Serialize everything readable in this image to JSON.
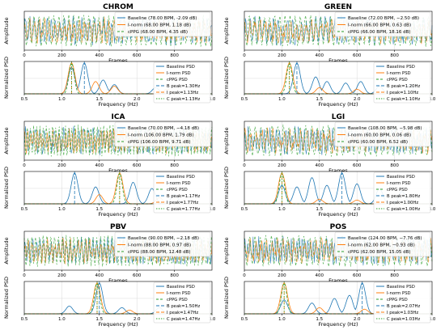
{
  "colors": {
    "baseline": "#1f77b4",
    "inorm": "#ff7f0e",
    "cppg": "#2ca02c",
    "axis": "#000000",
    "grid": "#d9d9d9"
  },
  "chart_data": [
    {
      "method": "CHROM",
      "time": {
        "type": "line",
        "title": "CHROM",
        "xlabel": "Frames",
        "ylabel": "Amplitude",
        "xlim": [
          0,
          1000
        ],
        "xticks": [
          0,
          200,
          400,
          600,
          800
        ],
        "legend_position": "upper-right",
        "grid": true,
        "series": [
          {
            "name": "Baseline (78.00 BPM, -2.09 dB)"
          },
          {
            "name": "I-norm (68.00 BPM, 1.18 dB)"
          },
          {
            "name": "cPPG (68.00 BPM, 4.35 dB)"
          }
        ]
      },
      "psd": {
        "type": "line",
        "xlabel": "Frequency (Hz)",
        "ylabel": "Normalized PSD",
        "xlim": [
          0.5,
          3.0
        ],
        "xticks": [
          0.5,
          1.0,
          1.5,
          2.0,
          2.5,
          3.0
        ],
        "ylim": [
          0,
          1.05
        ],
        "legend_position": "upper-right",
        "grid": true,
        "series": [
          {
            "name": "Baseline PSD",
            "peaks": [
              [
                1.3,
                1.0
              ],
              [
                1.13,
                0.85
              ],
              [
                1.55,
                0.45
              ],
              [
                1.7,
                0.3
              ],
              [
                2.25,
                0.2
              ]
            ]
          },
          {
            "name": "I-norm PSD",
            "peaks": [
              [
                1.13,
                1.0
              ],
              [
                1.45,
                0.4
              ],
              [
                1.7,
                0.25
              ],
              [
                2.4,
                0.15
              ]
            ]
          },
          {
            "name": "cPPG PSD",
            "peaks": [
              [
                1.13,
                1.0
              ]
            ]
          }
        ],
        "peak_lines": [
          {
            "name": "B peak=1.30Hz",
            "x": 1.3
          },
          {
            "name": "I peak=1.13Hz",
            "x": 1.13
          },
          {
            "name": "C peak=1.13Hz",
            "x": 1.13
          }
        ]
      }
    },
    {
      "method": "GREEN",
      "time": {
        "type": "line",
        "title": "GREEN",
        "xlabel": "Frames",
        "ylabel": "Amplitude",
        "xlim": [
          0,
          1000
        ],
        "xticks": [
          0,
          200,
          400,
          600,
          800
        ],
        "legend_position": "upper-right",
        "grid": true,
        "series": [
          {
            "name": "Baseline (72.00 BPM, −2.50 dB)"
          },
          {
            "name": "I-norm (66.00 BPM, 0.63 dB)"
          },
          {
            "name": "cPPG (66.00 BPM, 18.16 dB)"
          }
        ]
      },
      "psd": {
        "type": "line",
        "xlabel": "Frequency (Hz)",
        "ylabel": "Normalized PSD",
        "xlim": [
          0.5,
          3.0
        ],
        "xticks": [
          0.5,
          1.0,
          1.5,
          2.0,
          2.5,
          3.0
        ],
        "ylim": [
          0,
          1.05
        ],
        "legend_position": "upper-right",
        "grid": true,
        "series": [
          {
            "name": "Baseline PSD",
            "peaks": [
              [
                1.2,
                1.0
              ],
              [
                1.45,
                0.55
              ],
              [
                1.6,
                0.4
              ],
              [
                1.85,
                0.35
              ],
              [
                2.05,
                0.4
              ],
              [
                2.3,
                0.25
              ],
              [
                2.7,
                0.3
              ]
            ]
          },
          {
            "name": "I-norm PSD",
            "peaks": [
              [
                1.1,
                1.0
              ],
              [
                1.5,
                0.2
              ],
              [
                2.0,
                0.15
              ]
            ]
          },
          {
            "name": "cPPG PSD",
            "peaks": [
              [
                1.1,
                1.0
              ]
            ]
          }
        ],
        "peak_lines": [
          {
            "name": "B peak=1.20Hz",
            "x": 1.2
          },
          {
            "name": "I peak=1.10Hz",
            "x": 1.1
          },
          {
            "name": "C peak=1.10Hz",
            "x": 1.1
          }
        ]
      }
    },
    {
      "method": "ICA",
      "time": {
        "type": "line",
        "title": "ICA",
        "xlabel": "Frames",
        "ylabel": "Amplitude",
        "xlim": [
          0,
          1000
        ],
        "xticks": [
          0,
          200,
          400,
          600,
          800
        ],
        "legend_position": "upper-right",
        "grid": true,
        "series": [
          {
            "name": "Baseline (70.00 BPM, −4.18 dB)"
          },
          {
            "name": "I-norm (106.00 BPM, 1.79 dB)"
          },
          {
            "name": "cPPG (106.00 BPM, 9.71 dB)"
          }
        ]
      },
      "psd": {
        "type": "line",
        "xlabel": "Frequency (Hz)",
        "ylabel": "Normalized PSD",
        "xlim": [
          0.5,
          3.0
        ],
        "xticks": [
          0.5,
          1.0,
          1.5,
          2.0,
          2.5,
          3.0
        ],
        "ylim": [
          0,
          1.05
        ],
        "legend_position": "upper-right",
        "grid": true,
        "series": [
          {
            "name": "Baseline PSD",
            "peaks": [
              [
                1.17,
                1.0
              ],
              [
                1.45,
                0.55
              ],
              [
                1.95,
                0.7
              ],
              [
                2.2,
                0.5
              ],
              [
                2.5,
                0.3
              ]
            ]
          },
          {
            "name": "I-norm PSD",
            "peaks": [
              [
                1.77,
                1.0
              ],
              [
                1.5,
                0.3
              ],
              [
                2.3,
                0.2
              ]
            ]
          },
          {
            "name": "cPPG PSD",
            "peaks": [
              [
                1.77,
                1.0
              ]
            ]
          }
        ],
        "peak_lines": [
          {
            "name": "B peak=1.17Hz",
            "x": 1.17
          },
          {
            "name": "I peak=1.77Hz",
            "x": 1.77
          },
          {
            "name": "C peak=1.77Hz",
            "x": 1.77
          }
        ]
      }
    },
    {
      "method": "LGI",
      "time": {
        "type": "line",
        "title": "LGI",
        "xlabel": "Frames",
        "ylabel": "Amplitude",
        "xlim": [
          0,
          1000
        ],
        "xticks": [
          0,
          200,
          400,
          600,
          800
        ],
        "legend_position": "upper-right",
        "grid": true,
        "series": [
          {
            "name": "Baseline (108.00 BPM, −5.98 dB)"
          },
          {
            "name": "I-norm (60.00 BPM, 0.06 dB)"
          },
          {
            "name": "cPPG (60.00 BPM, 6.52 dB)"
          }
        ]
      },
      "psd": {
        "type": "line",
        "xlabel": "Frequency (Hz)",
        "ylabel": "Normalized PSD",
        "xlim": [
          0.5,
          3.0
        ],
        "xticks": [
          0.5,
          1.0,
          1.5,
          2.0,
          2.5,
          3.0
        ],
        "ylim": [
          0,
          1.05
        ],
        "legend_position": "upper-right",
        "grid": true,
        "series": [
          {
            "name": "Baseline PSD",
            "peaks": [
              [
                1.8,
                1.0
              ],
              [
                1.0,
                0.6
              ],
              [
                1.2,
                0.55
              ],
              [
                1.4,
                0.85
              ],
              [
                1.6,
                0.6
              ],
              [
                2.0,
                0.65
              ],
              [
                2.3,
                0.5
              ],
              [
                2.6,
                0.4
              ]
            ]
          },
          {
            "name": "I-norm PSD",
            "peaks": [
              [
                1.0,
                1.0
              ],
              [
                1.5,
                0.15
              ],
              [
                2.0,
                0.12
              ]
            ]
          },
          {
            "name": "cPPG PSD",
            "peaks": [
              [
                1.0,
                1.0
              ]
            ]
          }
        ],
        "peak_lines": [
          {
            "name": "B peak=1.80Hz",
            "x": 1.8
          },
          {
            "name": "I peak=1.00Hz",
            "x": 1.0
          },
          {
            "name": "C peak=1.00Hz",
            "x": 1.0
          }
        ]
      }
    },
    {
      "method": "PBV",
      "time": {
        "type": "line",
        "title": "PBV",
        "xlabel": "Frames",
        "ylabel": "Amplitude",
        "xlim": [
          0,
          1000
        ],
        "xticks": [
          0,
          200,
          400,
          600,
          800
        ],
        "legend_position": "upper-right",
        "grid": true,
        "series": [
          {
            "name": "Baseline (90.00 BPM, −2.18 dB)"
          },
          {
            "name": "I-norm (88.00 BPM, 0.97 dB)"
          },
          {
            "name": "cPPG (88.00 BPM, 12.48 dB)"
          }
        ]
      },
      "psd": {
        "type": "line",
        "xlabel": "Frequency (Hz)",
        "ylabel": "Normalized PSD",
        "xlim": [
          0.5,
          3.0
        ],
        "xticks": [
          0.5,
          1.0,
          1.5,
          2.0,
          2.5,
          3.0
        ],
        "ylim": [
          0,
          1.05
        ],
        "legend_position": "upper-right",
        "grid": true,
        "series": [
          {
            "name": "Baseline PSD",
            "peaks": [
              [
                1.5,
                1.0
              ],
              [
                1.1,
                0.25
              ],
              [
                1.8,
                0.2
              ],
              [
                2.3,
                0.2
              ],
              [
                2.7,
                0.15
              ]
            ]
          },
          {
            "name": "I-norm PSD",
            "peaks": [
              [
                1.47,
                1.0
              ],
              [
                1.9,
                0.12
              ]
            ]
          },
          {
            "name": "cPPG PSD",
            "peaks": [
              [
                1.47,
                1.0
              ]
            ]
          }
        ],
        "peak_lines": [
          {
            "name": "B peak=1.50Hz",
            "x": 1.5
          },
          {
            "name": "I peak=1.47Hz",
            "x": 1.47
          },
          {
            "name": "C peak=1.47Hz",
            "x": 1.47
          }
        ]
      }
    },
    {
      "method": "POS",
      "time": {
        "type": "line",
        "title": "POS",
        "xlabel": "Frames",
        "ylabel": "Amplitude",
        "xlim": [
          0,
          1000
        ],
        "xticks": [
          0,
          200,
          400,
          600,
          800
        ],
        "legend_position": "upper-right",
        "grid": true,
        "series": [
          {
            "name": "Baseline (124.00 BPM, −7.76 dB)"
          },
          {
            "name": "I-norm (62.00 BPM, −0.93 dB)"
          },
          {
            "name": "cPPG (62.00 BPM, 15.05 dB)"
          }
        ]
      },
      "psd": {
        "type": "line",
        "xlabel": "Frequency (Hz)",
        "ylabel": "Normalized PSD",
        "xlim": [
          0.5,
          3.0
        ],
        "xticks": [
          0.5,
          1.0,
          1.5,
          2.0,
          2.5,
          3.0
        ],
        "ylim": [
          0,
          1.05
        ],
        "legend_position": "upper-right",
        "grid": true,
        "series": [
          {
            "name": "Baseline PSD",
            "peaks": [
              [
                2.07,
                1.0
              ],
              [
                1.03,
                0.45
              ],
              [
                1.4,
                0.35
              ],
              [
                1.7,
                0.5
              ],
              [
                1.9,
                0.6
              ],
              [
                2.4,
                0.3
              ]
            ]
          },
          {
            "name": "I-norm PSD",
            "peaks": [
              [
                1.03,
                1.0
              ],
              [
                1.5,
                0.2
              ],
              [
                2.1,
                0.15
              ]
            ]
          },
          {
            "name": "cPPG PSD",
            "peaks": [
              [
                1.03,
                1.0
              ]
            ]
          }
        ],
        "peak_lines": [
          {
            "name": "B peak=2.07Hz",
            "x": 2.07
          },
          {
            "name": "I peak=1.03Hz",
            "x": 1.03
          },
          {
            "name": "C peak=1.03Hz",
            "x": 1.03
          }
        ]
      }
    }
  ]
}
